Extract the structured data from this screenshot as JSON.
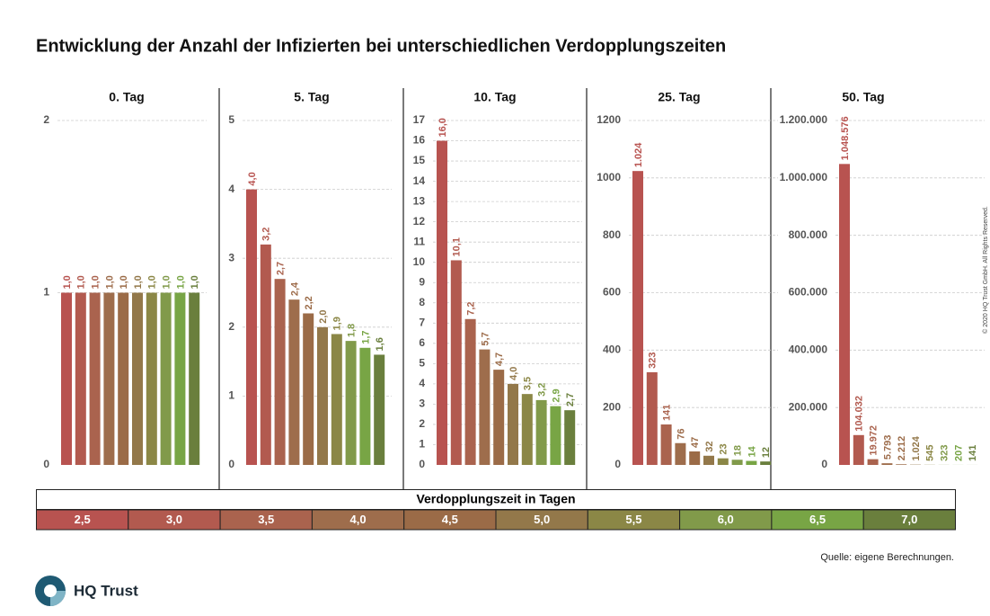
{
  "title": "Entwicklung der Anzahl der Infizierten bei unterschiedlichen Verdopplungszeiten",
  "chart_data": [
    {
      "type": "bar",
      "title": "0. Tag",
      "values": [
        1,
        1,
        1,
        1,
        1,
        1,
        1,
        1,
        1,
        1
      ],
      "value_labels": [
        "1,0",
        "1,0",
        "1,0",
        "1,0",
        "1,0",
        "1,0",
        "1,0",
        "1,0",
        "1,0",
        "1,0"
      ],
      "ylim": [
        0,
        2
      ],
      "yticks": [
        0,
        1,
        2
      ],
      "grid": true
    },
    {
      "type": "bar",
      "title": "5. Tag",
      "values": [
        4.0,
        3.2,
        2.7,
        2.4,
        2.2,
        2.0,
        1.9,
        1.8,
        1.7,
        1.6
      ],
      "value_labels": [
        "4,0",
        "3,2",
        "2,7",
        "2,4",
        "2,2",
        "2,0",
        "1,9",
        "1,8",
        "1,7",
        "1,6"
      ],
      "ylim": [
        0,
        5
      ],
      "yticks": [
        0,
        1,
        2,
        3,
        4,
        5
      ],
      "grid": true
    },
    {
      "type": "bar",
      "title": "10. Tag",
      "values": [
        16.0,
        10.1,
        7.2,
        5.7,
        4.7,
        4.0,
        3.5,
        3.2,
        2.9,
        2.7
      ],
      "value_labels": [
        "16,0",
        "10,1",
        "7,2",
        "5,7",
        "4,7",
        "4,0",
        "3,5",
        "3,2",
        "2,9",
        "2,7"
      ],
      "ylim": [
        0,
        17
      ],
      "yticks": [
        0,
        1,
        2,
        3,
        4,
        5,
        6,
        7,
        8,
        9,
        10,
        11,
        12,
        13,
        14,
        15,
        16,
        17
      ],
      "grid": true
    },
    {
      "type": "bar",
      "title": "25. Tag",
      "values": [
        1024,
        323,
        141,
        76,
        47,
        32,
        23,
        18,
        14,
        12
      ],
      "value_labels": [
        "1.024",
        "323",
        "141",
        "76",
        "47",
        "32",
        "23",
        "18",
        "14",
        "12"
      ],
      "ylim": [
        0,
        1200
      ],
      "yticks": [
        0,
        200,
        400,
        600,
        800,
        1000,
        1200
      ],
      "grid": true
    },
    {
      "type": "bar",
      "title": "50. Tag",
      "values": [
        1048576,
        104032,
        19972,
        5793,
        2212,
        1024,
        545,
        323,
        207,
        141
      ],
      "value_labels": [
        "1.048.576",
        "104.032",
        "19.972",
        "5.793",
        "2.212",
        "1.024",
        "545",
        "323",
        "207",
        "141"
      ],
      "ylim": [
        0,
        1200000
      ],
      "yticks": [
        0,
        {
          "value": 200000,
          "label": "200.000"
        },
        {
          "value": 400000,
          "label": "400.000"
        },
        {
          "value": 600000,
          "label": "600.000"
        },
        {
          "value": 800000,
          "label": "800.000"
        },
        {
          "value": 1000000,
          "label": "1.000.000"
        },
        {
          "value": 1200000,
          "label": "1.200.000"
        }
      ],
      "grid": true
    }
  ],
  "legend": {
    "title": "Verdopplungszeit in Tagen",
    "labels": [
      "2,5",
      "3,0",
      "3,5",
      "4,0",
      "4,5",
      "5,0",
      "5,5",
      "6,0",
      "6,5",
      "7,0"
    ],
    "colors": [
      "#b85350",
      "#b25a4f",
      "#aa634e",
      "#9e6d4c",
      "#9b6b47",
      "#93784a",
      "#8b8746",
      "#819a4a",
      "#78a545",
      "#6a7f3d"
    ]
  },
  "source": "Quelle: eigene Berechnungen.",
  "logo": "HQ Trust",
  "copyright": "© 2020 HQ Trust GmbH. All Rights Reserved."
}
